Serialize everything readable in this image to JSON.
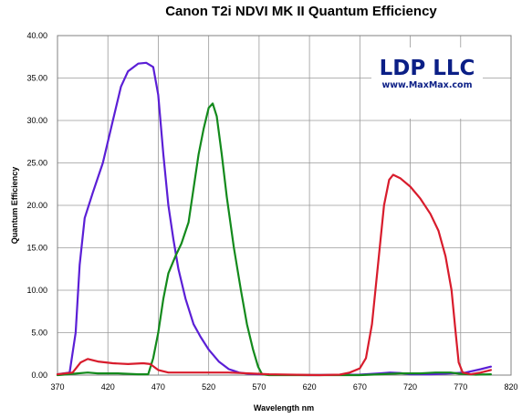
{
  "chart_data": {
    "type": "line",
    "title": "Canon T2i NDVI MK II Quantum Efficiency",
    "xlabel": "Wavelength nm",
    "ylabel": "Quantum Efficiency",
    "xlim": [
      370,
      820
    ],
    "ylim": [
      0,
      40
    ],
    "x_ticks": [
      "370",
      "420",
      "470",
      "520",
      "570",
      "620",
      "670",
      "720",
      "770",
      "820"
    ],
    "y_ticks": [
      "0.00",
      "5.00",
      "10.00",
      "15.00",
      "20.00",
      "25.00",
      "30.00",
      "35.00",
      "40.00"
    ],
    "grid": true,
    "legend": "none",
    "logo": {
      "main": "LDP LLC",
      "sub": "www.MaxMax.com"
    },
    "series": [
      {
        "color": "#5b1fd6",
        "points": [
          [
            370,
            0.1
          ],
          [
            382,
            0.3
          ],
          [
            388,
            5
          ],
          [
            392,
            13
          ],
          [
            397,
            18.5
          ],
          [
            405,
            21.5
          ],
          [
            415,
            25
          ],
          [
            425,
            30
          ],
          [
            433,
            34
          ],
          [
            440,
            35.8
          ],
          [
            450,
            36.7
          ],
          [
            458,
            36.8
          ],
          [
            465,
            36.3
          ],
          [
            470,
            33
          ],
          [
            475,
            26
          ],
          [
            480,
            20
          ],
          [
            485,
            16
          ],
          [
            490,
            12.5
          ],
          [
            497,
            9
          ],
          [
            505,
            6
          ],
          [
            512,
            4.5
          ],
          [
            520,
            3
          ],
          [
            530,
            1.6
          ],
          [
            540,
            0.7
          ],
          [
            550,
            0.3
          ],
          [
            560,
            0.15
          ],
          [
            580,
            0.05
          ],
          [
            620,
            0
          ],
          [
            670,
            0.05
          ],
          [
            690,
            0.2
          ],
          [
            700,
            0.3
          ],
          [
            710,
            0.25
          ],
          [
            720,
            0.1
          ],
          [
            740,
            0.1
          ],
          [
            760,
            0.2
          ],
          [
            775,
            0.3
          ],
          [
            790,
            0.7
          ],
          [
            800,
            1
          ]
        ]
      },
      {
        "color": "#138a1c",
        "points": [
          [
            370,
            0
          ],
          [
            380,
            0.1
          ],
          [
            390,
            0.2
          ],
          [
            400,
            0.3
          ],
          [
            410,
            0.2
          ],
          [
            430,
            0.2
          ],
          [
            450,
            0.1
          ],
          [
            460,
            0.1
          ],
          [
            465,
            2
          ],
          [
            470,
            5
          ],
          [
            475,
            9
          ],
          [
            480,
            12
          ],
          [
            487,
            14
          ],
          [
            493,
            15.5
          ],
          [
            500,
            18
          ],
          [
            505,
            22
          ],
          [
            510,
            26
          ],
          [
            515,
            29
          ],
          [
            520,
            31.5
          ],
          [
            524,
            32
          ],
          [
            528,
            30.5
          ],
          [
            533,
            26
          ],
          [
            538,
            21
          ],
          [
            545,
            15
          ],
          [
            552,
            10
          ],
          [
            558,
            6
          ],
          [
            564,
            3
          ],
          [
            569,
            1
          ],
          [
            573,
            0.1
          ],
          [
            580,
            0
          ],
          [
            670,
            0
          ],
          [
            690,
            0.1
          ],
          [
            710,
            0.2
          ],
          [
            730,
            0.2
          ],
          [
            745,
            0.3
          ],
          [
            760,
            0.3
          ],
          [
            770,
            0.15
          ],
          [
            785,
            0.05
          ],
          [
            800,
            0.1
          ]
        ]
      },
      {
        "color": "#d81c2c",
        "points": [
          [
            370,
            0.1
          ],
          [
            385,
            0.3
          ],
          [
            393,
            1.5
          ],
          [
            400,
            1.9
          ],
          [
            410,
            1.6
          ],
          [
            425,
            1.4
          ],
          [
            440,
            1.3
          ],
          [
            455,
            1.4
          ],
          [
            462,
            1.3
          ],
          [
            470,
            0.6
          ],
          [
            480,
            0.3
          ],
          [
            500,
            0.3
          ],
          [
            520,
            0.3
          ],
          [
            540,
            0.3
          ],
          [
            560,
            0.2
          ],
          [
            580,
            0.1
          ],
          [
            600,
            0.05
          ],
          [
            630,
            0
          ],
          [
            650,
            0.05
          ],
          [
            660,
            0.3
          ],
          [
            670,
            0.8
          ],
          [
            676,
            2
          ],
          [
            682,
            6
          ],
          [
            688,
            13
          ],
          [
            694,
            20
          ],
          [
            699,
            23
          ],
          [
            703,
            23.6
          ],
          [
            710,
            23.2
          ],
          [
            720,
            22.2
          ],
          [
            730,
            20.8
          ],
          [
            740,
            19
          ],
          [
            748,
            17
          ],
          [
            755,
            14
          ],
          [
            761,
            10
          ],
          [
            765,
            5
          ],
          [
            768,
            1.5
          ],
          [
            772,
            0.3
          ],
          [
            780,
            0.1
          ],
          [
            790,
            0.3
          ],
          [
            800,
            0.6
          ]
        ]
      }
    ]
  }
}
